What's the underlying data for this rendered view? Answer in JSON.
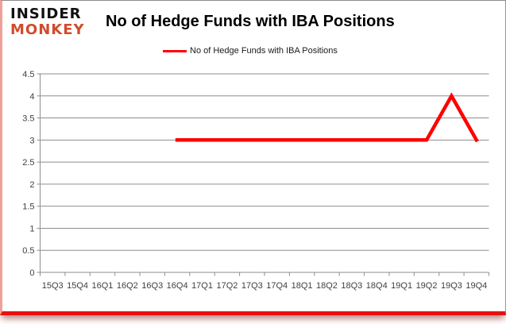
{
  "brand": {
    "line1": "INSIDER",
    "line2": "MONKEY",
    "line1_color": "#111111",
    "line2_color": "#d24b2c"
  },
  "header": {
    "title": "No of Hedge Funds with IBA Positions"
  },
  "legend": {
    "label": "No of Hedge Funds with IBA Positions",
    "line_color": "#ff0000"
  },
  "chart_data": {
    "type": "line",
    "title": "No of Hedge Funds with IBA Positions",
    "categories": [
      "15Q3",
      "15Q4",
      "16Q1",
      "16Q2",
      "16Q3",
      "16Q4",
      "17Q1",
      "17Q2",
      "17Q3",
      "17Q4",
      "18Q1",
      "18Q2",
      "18Q3",
      "18Q4",
      "19Q1",
      "19Q2",
      "19Q3",
      "19Q4"
    ],
    "series": [
      {
        "name": "No of Hedge Funds with IBA Positions",
        "color": "#ff0000",
        "values": [
          null,
          null,
          null,
          null,
          null,
          3,
          3,
          3,
          3,
          3,
          3,
          3,
          3,
          3,
          3,
          3,
          4,
          3
        ]
      }
    ],
    "xlabel": "",
    "ylabel": "",
    "ylim": [
      0,
      4.5
    ],
    "ytick_step": 0.5,
    "ytick_labels": [
      "0",
      "0.5",
      "1",
      "1.5",
      "2",
      "2.5",
      "3",
      "3.5",
      "4",
      "4.5"
    ],
    "grid": "horizontal",
    "gridline_color": "#8e8e8e",
    "axis_label_color": "#404040",
    "legend_position": "top-center"
  }
}
